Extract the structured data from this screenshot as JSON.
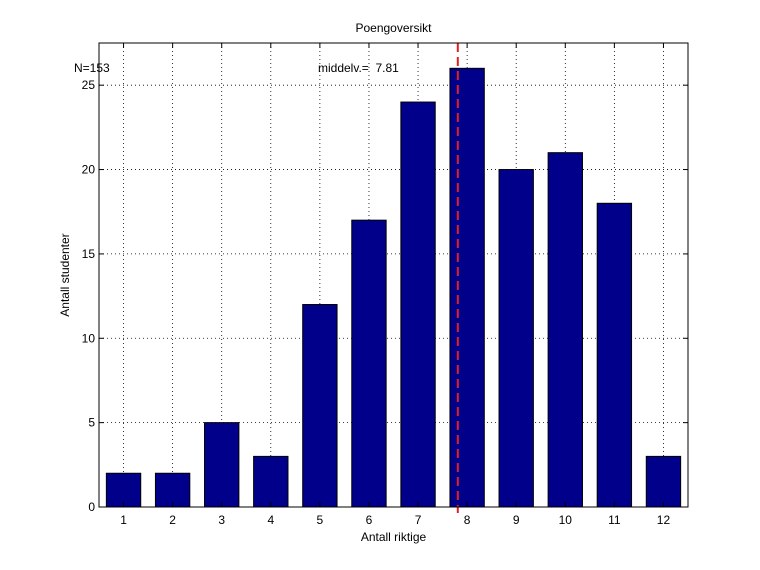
{
  "chart_data": {
    "type": "bar",
    "title": "Poengoversikt",
    "xlabel": "Antall riktige",
    "ylabel": "Antall studenter",
    "categories": [
      "1",
      "2",
      "3",
      "4",
      "5",
      "6",
      "7",
      "8",
      "9",
      "10",
      "11",
      "12"
    ],
    "values": [
      2,
      2,
      5,
      3,
      12,
      17,
      24,
      26,
      20,
      21,
      18,
      3
    ],
    "xlim": [
      0.5,
      12.5
    ],
    "ylim": [
      0,
      27.5
    ],
    "yticks": [
      0,
      5,
      10,
      15,
      20,
      25
    ],
    "grid": true,
    "bar_color": "#00008b",
    "mean_line": {
      "x": 7.81,
      "color": "#e32020",
      "style": "dashed"
    },
    "annotations": {
      "n_text": "N=153",
      "mean_text": "middelv.=  7.81"
    }
  }
}
